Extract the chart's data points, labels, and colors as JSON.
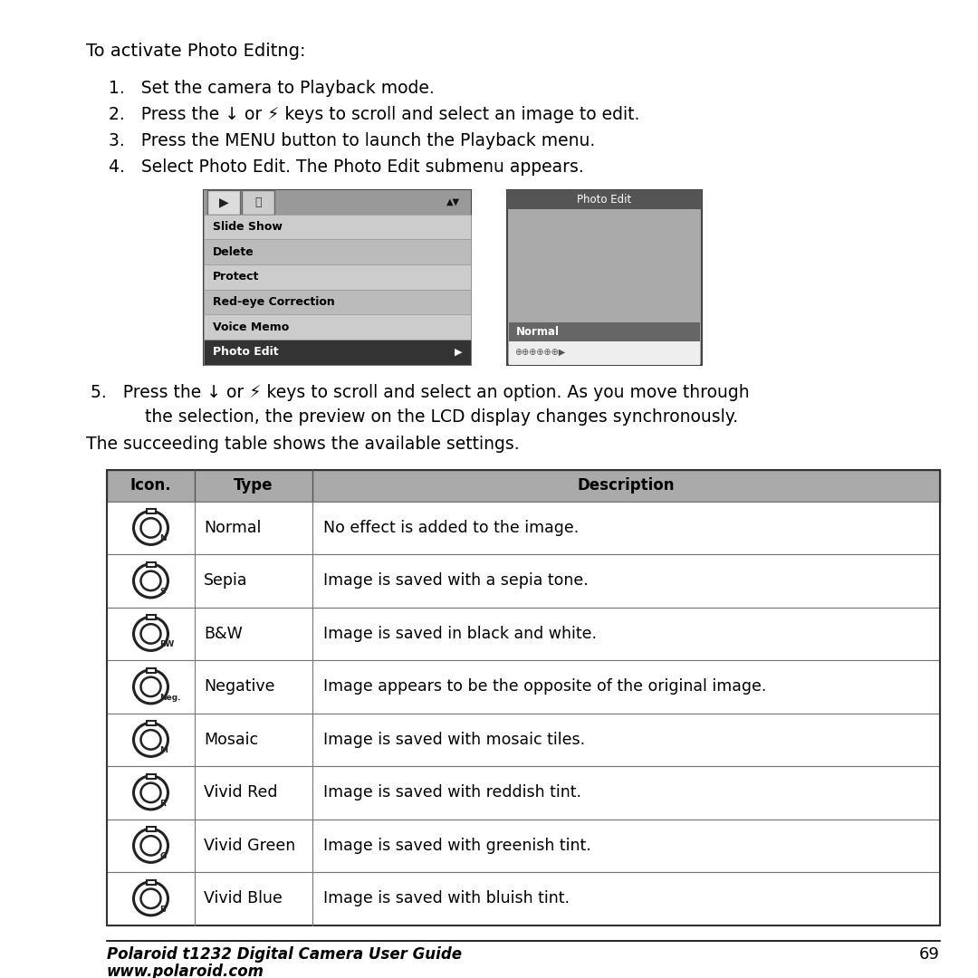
{
  "title_text": "To activate Photo Editng:",
  "step1": "1.   Set the camera to Playback mode.",
  "step2_a": "2.   Press the ↓ or ⚡ keys to scroll and select an image to edit.",
  "step3": "3.   Press the MENU button to launch the Playback menu.",
  "step4": "4.   Select Photo Edit. The Photo Edit submenu appears.",
  "step5_a": "5.   Press the ↓ or ⚡ keys to scroll and select an option. As you move through",
  "step5_b": "     the selection, the preview on the LCD display changes synchronously.",
  "step5_c": "The succeeding table shows the available settings.",
  "menu_items": [
    "Slide Show",
    "Delete",
    "Protect",
    "Red-eye Correction",
    "Voice Memo",
    "Photo Edit"
  ],
  "table_headers": [
    "Icon.",
    "Type",
    "Description"
  ],
  "table_rows": [
    [
      "N",
      "Normal",
      "No effect is added to the image."
    ],
    [
      "S",
      "Sepia",
      "Image is saved with a sepia tone."
    ],
    [
      "BW",
      "B&W",
      "Image is saved in black and white."
    ],
    [
      "Neg.",
      "Negative",
      "Image appears to be the opposite of the original image."
    ],
    [
      "M",
      "Mosaic",
      "Image is saved with mosaic tiles."
    ],
    [
      "R",
      "Vivid Red",
      "Image is saved with reddish tint."
    ],
    [
      "G",
      "Vivid Green",
      "Image is saved with greenish tint."
    ],
    [
      "B",
      "Vivid Blue",
      "Image is saved with bluish tint."
    ]
  ],
  "footer_bold": "Polaroid t1232 Digital Camera User Guide",
  "footer_url": "www.polaroid.com",
  "footer_page": "69",
  "bg_color": "#ffffff",
  "text_color": "#000000",
  "table_header_bg": "#aaaaaa",
  "menu_bg_light": "#bbbbbb",
  "menu_bg_medium": "#cccccc",
  "menu_bg_selected": "#333333",
  "photo_header_bg": "#555555",
  "photo_preview_bg": "#999999",
  "photo_normal_bg": "#666666",
  "photo_icons_bg": "#eeeeee"
}
